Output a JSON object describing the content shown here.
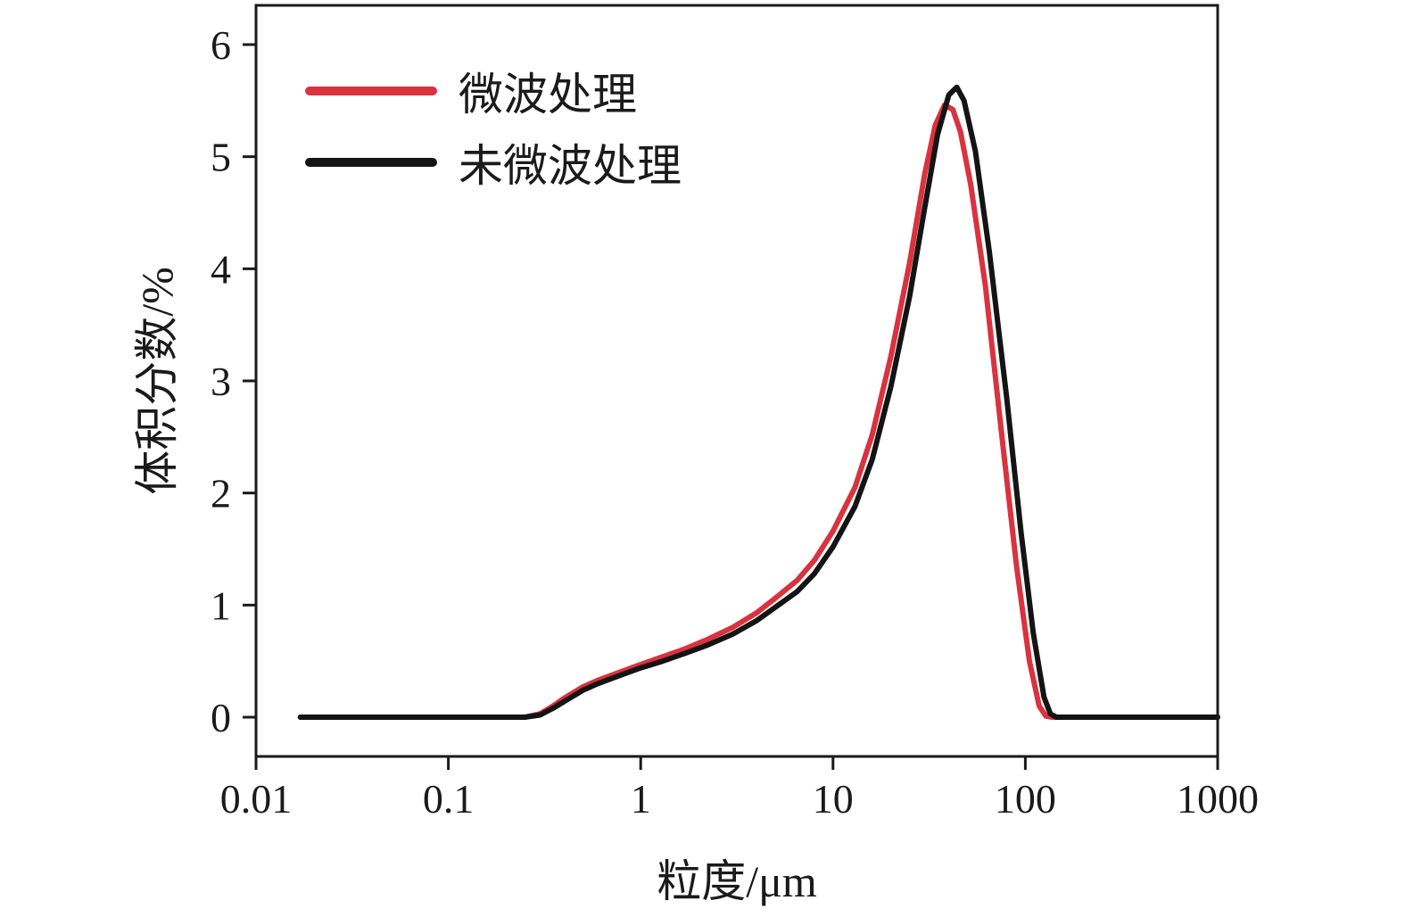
{
  "chart_data": {
    "type": "line",
    "x_scale": "log",
    "title": "",
    "xlabel": "粒度/μm",
    "ylabel": "体积分数/%",
    "xlim": [
      0.01,
      1000
    ],
    "ylim": [
      -0.35,
      6.35
    ],
    "x_ticks": [
      0.01,
      0.1,
      1,
      10,
      100,
      1000
    ],
    "x_tick_labels": [
      "0.01",
      "0.1",
      "1",
      "10",
      "100",
      "1000"
    ],
    "y_ticks": [
      0,
      1,
      2,
      3,
      4,
      5,
      6
    ],
    "y_tick_labels": [
      "0",
      "1",
      "2",
      "3",
      "4",
      "5",
      "6"
    ],
    "grid": false,
    "legend_position": "top-left",
    "axis_color": "#1a1a1a",
    "series": [
      {
        "id": "microwave-treated",
        "name": "微波处理",
        "color": "#d8333f",
        "x": [
          0.017,
          0.25,
          0.3,
          0.35,
          0.4,
          0.5,
          0.6,
          0.8,
          1.0,
          1.3,
          1.7,
          2.2,
          3.0,
          4.0,
          5.0,
          6.5,
          8.0,
          10,
          13,
          16,
          20,
          25,
          30,
          34,
          38,
          42,
          46,
          52,
          62,
          75,
          90,
          105,
          118,
          128,
          138,
          150,
          300,
          1000
        ],
        "y": [
          0,
          0,
          0.03,
          0.1,
          0.17,
          0.27,
          0.33,
          0.41,
          0.47,
          0.54,
          0.61,
          0.69,
          0.8,
          0.93,
          1.06,
          1.22,
          1.4,
          1.66,
          2.05,
          2.52,
          3.22,
          4.05,
          4.85,
          5.28,
          5.46,
          5.42,
          5.22,
          4.75,
          3.85,
          2.55,
          1.35,
          0.5,
          0.1,
          0.01,
          0,
          0,
          0,
          0
        ]
      },
      {
        "id": "not-microwave-treated",
        "name": "未微波处理",
        "color": "#141414",
        "x": [
          0.017,
          0.25,
          0.3,
          0.35,
          0.4,
          0.5,
          0.6,
          0.8,
          1.0,
          1.3,
          1.7,
          2.2,
          3.0,
          4.0,
          5.0,
          6.5,
          8.0,
          10,
          13,
          16,
          20,
          25,
          30,
          35,
          40,
          44,
          48,
          55,
          65,
          80,
          95,
          110,
          125,
          135,
          145,
          160,
          300,
          1000
        ],
        "y": [
          0,
          0,
          0.02,
          0.08,
          0.14,
          0.24,
          0.3,
          0.38,
          0.44,
          0.5,
          0.57,
          0.64,
          0.74,
          0.86,
          0.98,
          1.12,
          1.28,
          1.52,
          1.88,
          2.3,
          2.95,
          3.75,
          4.55,
          5.2,
          5.55,
          5.62,
          5.5,
          5.05,
          4.15,
          2.85,
          1.65,
          0.75,
          0.18,
          0.03,
          0,
          0,
          0,
          0
        ]
      }
    ]
  }
}
